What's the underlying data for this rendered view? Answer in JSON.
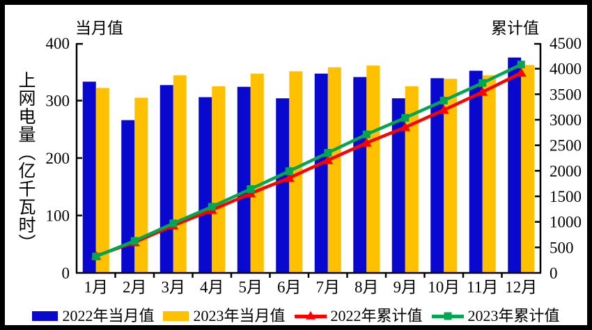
{
  "labels": {
    "monthly_title": "当月值",
    "cumulative_title": "累计值",
    "y_axis_title": "上网电量（亿千瓦时）"
  },
  "colors": {
    "bar_2022": "#0808CE",
    "bar_2023": "#FFC000",
    "line_2022": "#FF0000",
    "line_2023": "#00A651",
    "axis": "#000000",
    "frame": "#000000"
  },
  "chart_data": {
    "type": "bar+line combo",
    "categories": [
      "1月",
      "2月",
      "3月",
      "4月",
      "5月",
      "6月",
      "7月",
      "8月",
      "9月",
      "10月",
      "11月",
      "12月"
    ],
    "series": [
      {
        "name": "2022年当月值",
        "type": "bar",
        "axis": "left",
        "color": "#0808CE",
        "swatch": "bar",
        "values": [
          333,
          266,
          327,
          306,
          324,
          304,
          347,
          341,
          304,
          339,
          352,
          375
        ]
      },
      {
        "name": "2023年当月值",
        "type": "bar",
        "axis": "left",
        "color": "#FFC000",
        "swatch": "bar",
        "values": [
          322,
          305,
          344,
          325,
          347,
          351,
          358,
          361,
          325,
          338,
          344,
          362
        ]
      },
      {
        "name": "2022年累计值",
        "type": "line",
        "marker": "triangle",
        "axis": "right",
        "color": "#FF0000",
        "swatch": "line-triangle",
        "values": [
          333,
          599,
          926,
          1232,
          1556,
          1860,
          2207,
          2548,
          2852,
          3191,
          3543,
          3918
        ]
      },
      {
        "name": "2023年累计值",
        "type": "line",
        "marker": "square",
        "axis": "right",
        "color": "#00A651",
        "swatch": "line-square",
        "values": [
          322,
          627,
          971,
          1296,
          1643,
          1994,
          2352,
          2713,
          3038,
          3376,
          3720,
          4082
        ]
      }
    ],
    "left_axis": {
      "title": "上网电量（亿千瓦时）",
      "header": "当月值",
      "min": 0,
      "max": 400,
      "ticks": [
        0,
        100,
        200,
        300,
        400
      ]
    },
    "right_axis": {
      "header": "累计值",
      "min": 0,
      "max": 4500,
      "ticks": [
        0,
        500,
        1000,
        1500,
        2000,
        2500,
        3000,
        3500,
        4000,
        4500
      ]
    },
    "legend_position": "bottom",
    "grid": false
  }
}
